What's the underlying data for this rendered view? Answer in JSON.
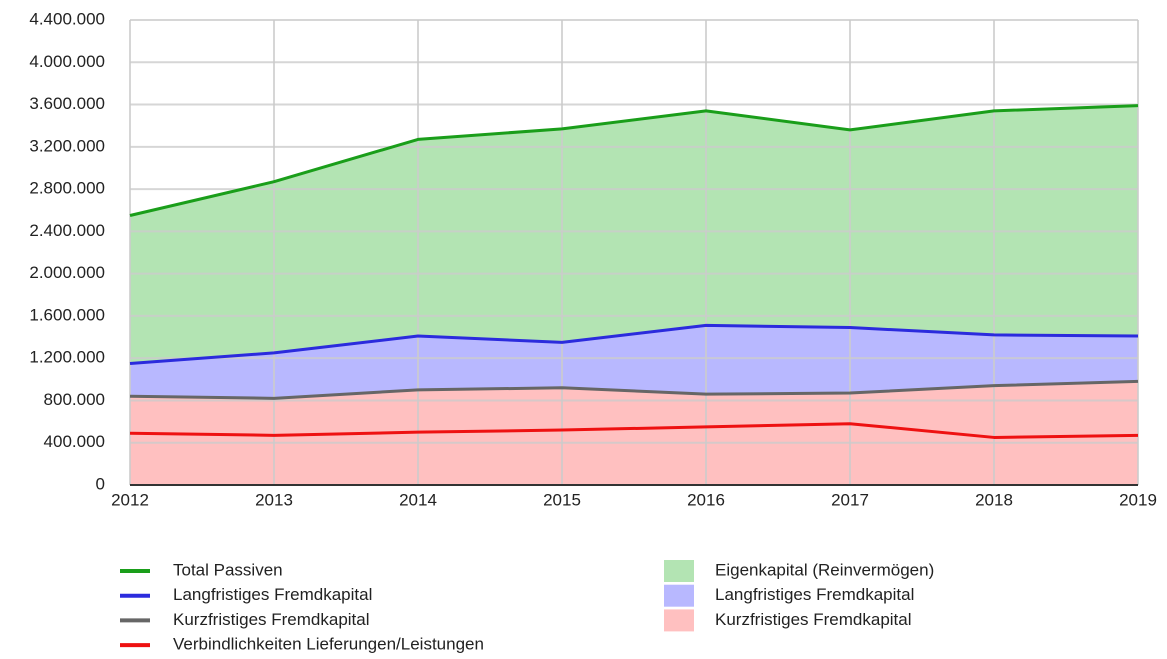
{
  "chart_data": {
    "type": "area",
    "categories": [
      "2012",
      "2013",
      "2014",
      "2015",
      "2016",
      "2017",
      "2018",
      "2019"
    ],
    "ylim": [
      0,
      4400000
    ],
    "yticks": [
      0,
      {
        "value": 400000,
        "label": "400.000"
      },
      {
        "value": 800000,
        "label": "800.000"
      },
      {
        "value": 1200000,
        "label": "1.200.000"
      },
      {
        "value": 1600000,
        "label": "1.600.000"
      },
      {
        "value": 2000000,
        "label": "2.000.000"
      },
      {
        "value": 2400000,
        "label": "2.400.000"
      },
      {
        "value": 2800000,
        "label": "2.800.000"
      },
      {
        "value": 3200000,
        "label": "3.200.000"
      },
      {
        "value": 3600000,
        "label": "3.600.000"
      },
      {
        "value": 4000000,
        "label": "4.000.000"
      },
      {
        "value": 4400000,
        "label": "4.400.000"
      }
    ],
    "grid": true,
    "line_series": [
      {
        "name": "Total Passiven",
        "color": "#1a9e1a",
        "values": [
          2550000,
          2870000,
          3270000,
          3370000,
          3540000,
          3360000,
          3540000,
          3590000
        ]
      },
      {
        "name": "Langfristiges Fremdkapital",
        "color": "#2b2bdd",
        "stacked": true,
        "values": [
          310000,
          430000,
          510000,
          430000,
          650000,
          620000,
          480000,
          430000
        ]
      },
      {
        "name": "Kurzfristiges Fremdkapital",
        "color": "#666666",
        "stacked": true,
        "values": [
          840000,
          820000,
          900000,
          920000,
          860000,
          870000,
          940000,
          980000
        ]
      },
      {
        "name": "Verbindlichkeiten Lieferungen/Leistungen",
        "color": "#ee1111",
        "values": [
          490000,
          470000,
          500000,
          520000,
          550000,
          580000,
          450000,
          470000
        ]
      }
    ],
    "series": [
      {
        "name": "Eigenkapital (Reinvermögen)",
        "color": "#b3e4b3",
        "values": [
          1400000,
          1620000,
          1860000,
          2020000,
          2030000,
          1870000,
          2120000,
          2180000
        ]
      },
      {
        "name": "Langfristiges Fremdkapital",
        "color": "#b8b8ff",
        "values": [
          310000,
          430000,
          510000,
          430000,
          650000,
          620000,
          480000,
          430000
        ]
      },
      {
        "name": "Kurzfristiges Fremdkapital",
        "color": "#ffc0c0",
        "values": [
          840000,
          820000,
          900000,
          920000,
          860000,
          870000,
          940000,
          980000
        ]
      }
    ]
  }
}
